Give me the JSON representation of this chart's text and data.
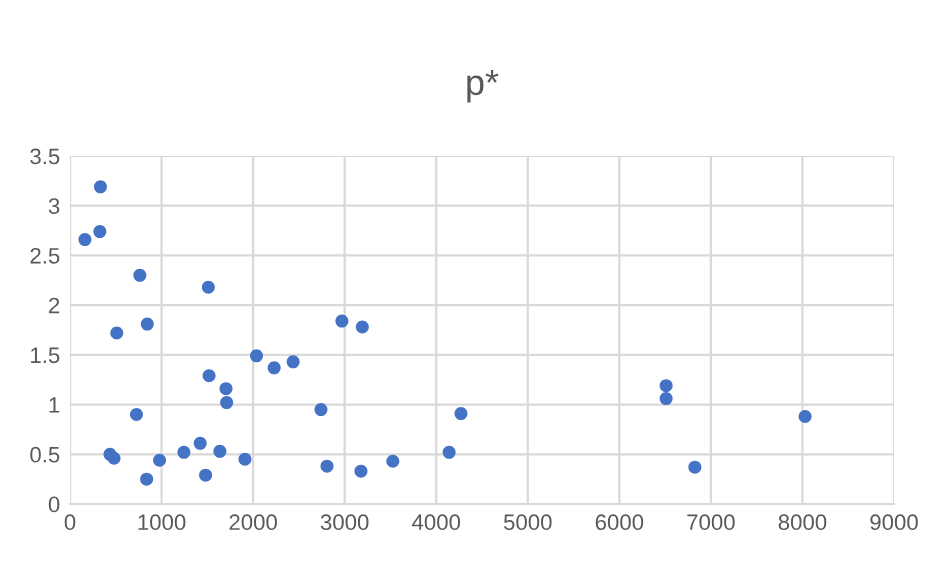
{
  "chart_data": {
    "type": "scatter",
    "title": "p*",
    "x": [
      163,
      333,
      326,
      763,
      1511,
      844,
      511,
      2970,
      3193,
      2037,
      2230,
      2437,
      1519,
      1704,
      1711,
      2741,
      726,
      4270,
      437,
      481,
      978,
      837,
      1244,
      1422,
      1481,
      1637,
      1911,
      2807,
      3178,
      3526,
      4141,
      6511,
      6511,
      6825,
      8029
    ],
    "values": [
      2.66,
      3.19,
      2.74,
      2.3,
      2.18,
      1.81,
      1.72,
      1.84,
      1.78,
      1.49,
      1.37,
      1.43,
      1.29,
      1.16,
      1.02,
      0.95,
      0.9,
      0.91,
      0.5,
      0.46,
      0.44,
      0.25,
      0.52,
      0.61,
      0.29,
      0.53,
      0.45,
      0.38,
      0.33,
      0.43,
      0.52,
      1.19,
      1.06,
      0.37,
      0.88
    ],
    "color": "#4472c4",
    "marker": "circle",
    "xlim": [
      0,
      9000
    ],
    "xticks": [
      0,
      1000,
      2000,
      3000,
      4000,
      5000,
      6000,
      7000,
      8000,
      9000
    ],
    "ylim": [
      0,
      3.5
    ],
    "yticks": [
      0,
      0.5,
      1,
      1.5,
      2,
      2.5,
      3,
      3.5
    ],
    "grid": true,
    "legend": false
  }
}
